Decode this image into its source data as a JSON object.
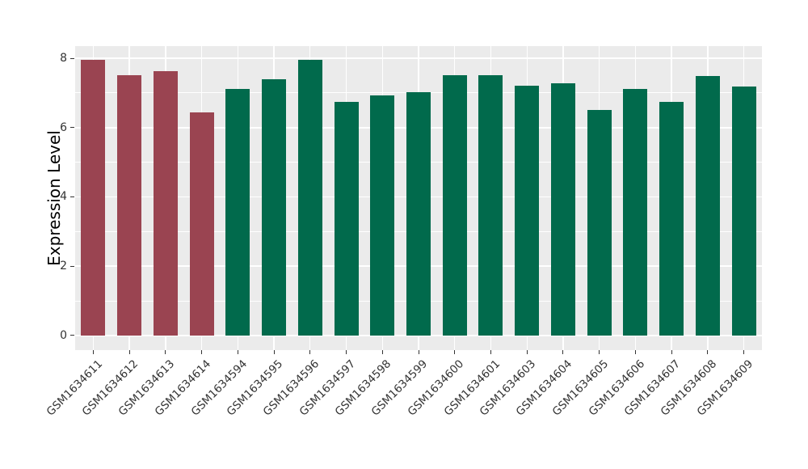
{
  "chart_data": {
    "type": "bar",
    "title": "",
    "xlabel": "",
    "ylabel": "Expression Level",
    "categories": [
      "GSM1634611",
      "GSM1634612",
      "GSM1634613",
      "GSM1634614",
      "GSM1634594",
      "GSM1634595",
      "GSM1634596",
      "GSM1634597",
      "GSM1634598",
      "GSM1634599",
      "GSM1634600",
      "GSM1634601",
      "GSM1634603",
      "GSM1634604",
      "GSM1634605",
      "GSM1634606",
      "GSM1634607",
      "GSM1634608",
      "GSM1634609"
    ],
    "values": [
      7.96,
      7.5,
      7.63,
      6.44,
      7.11,
      7.39,
      7.96,
      6.75,
      6.92,
      7.03,
      7.5,
      7.52,
      7.21,
      7.27,
      6.51,
      7.11,
      6.75,
      7.49,
      7.19
    ],
    "bar_colors": [
      "#9a4451",
      "#9a4451",
      "#9a4451",
      "#9a4451",
      "#016a4c",
      "#016a4c",
      "#016a4c",
      "#016a4c",
      "#016a4c",
      "#016a4c",
      "#016a4c",
      "#016a4c",
      "#016a4c",
      "#016a4c",
      "#016a4c",
      "#016a4c",
      "#016a4c",
      "#016a4c",
      "#016a4c"
    ],
    "group_colors": {
      "first_group": "#9a4451",
      "second_group": "#016a4c"
    },
    "ylim": [
      -0.42,
      8.35
    ],
    "yticks": [
      0,
      2,
      4,
      6,
      8
    ],
    "yticks_minor": [
      1,
      3,
      5,
      7
    ],
    "ytick_labels": [
      "0",
      "2",
      "4",
      "6",
      "8"
    ],
    "grid": "on",
    "grid_color": "#ffffff",
    "panel_background": "#ebebeb",
    "legend_position": "none",
    "bar_width_fraction": 0.68,
    "x_label_rotation_deg": 45
  }
}
